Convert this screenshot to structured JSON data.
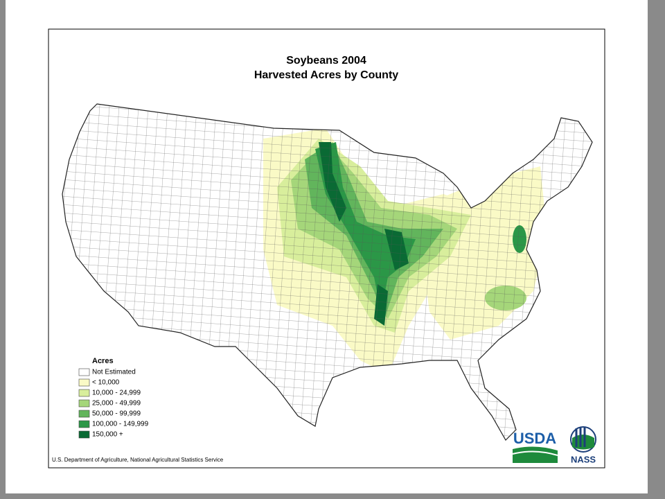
{
  "title": "Soybeans 2004",
  "subtitle": "Harvested Acres by County",
  "legend": {
    "title": "Acres",
    "items": [
      {
        "label": "Not Estimated",
        "color": "#ffffff"
      },
      {
        "label": "< 10,000",
        "color": "#fafac6"
      },
      {
        "label": "10,000 - 24,999",
        "color": "#d8ee9c"
      },
      {
        "label": "25,000 - 49,999",
        "color": "#a5d67a"
      },
      {
        "label": "50,000 - 99,999",
        "color": "#62b55c"
      },
      {
        "label": "100,000 - 149,999",
        "color": "#2b9747"
      },
      {
        "label": "150,000 +",
        "color": "#0a6a34"
      }
    ]
  },
  "footer": "U.S. Department of Agriculture, National Agricultural Statistics Service",
  "logos": {
    "usda": "USDA",
    "nass": "NASS"
  }
}
